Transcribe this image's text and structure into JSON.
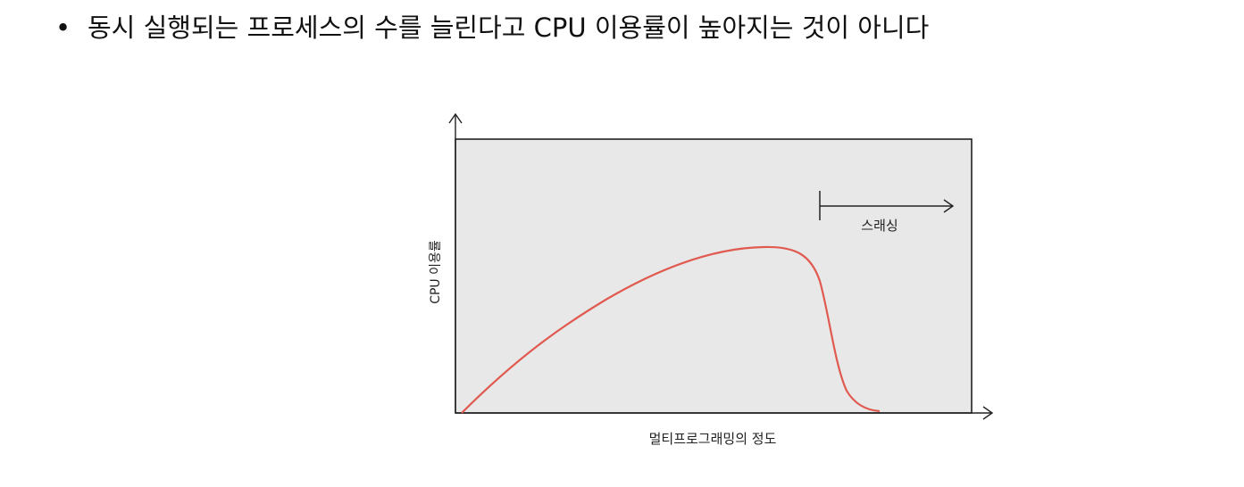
{
  "bullet": {
    "text": "동시 실행되는 프로세스의 수를 늘린다고 CPU 이용률이 높아지는 것이 아니다"
  },
  "diagram": {
    "y_axis_label": "CPU 이용률",
    "x_axis_label": "멀티프로그래밍의 정도",
    "annotation": "스래싱"
  }
}
